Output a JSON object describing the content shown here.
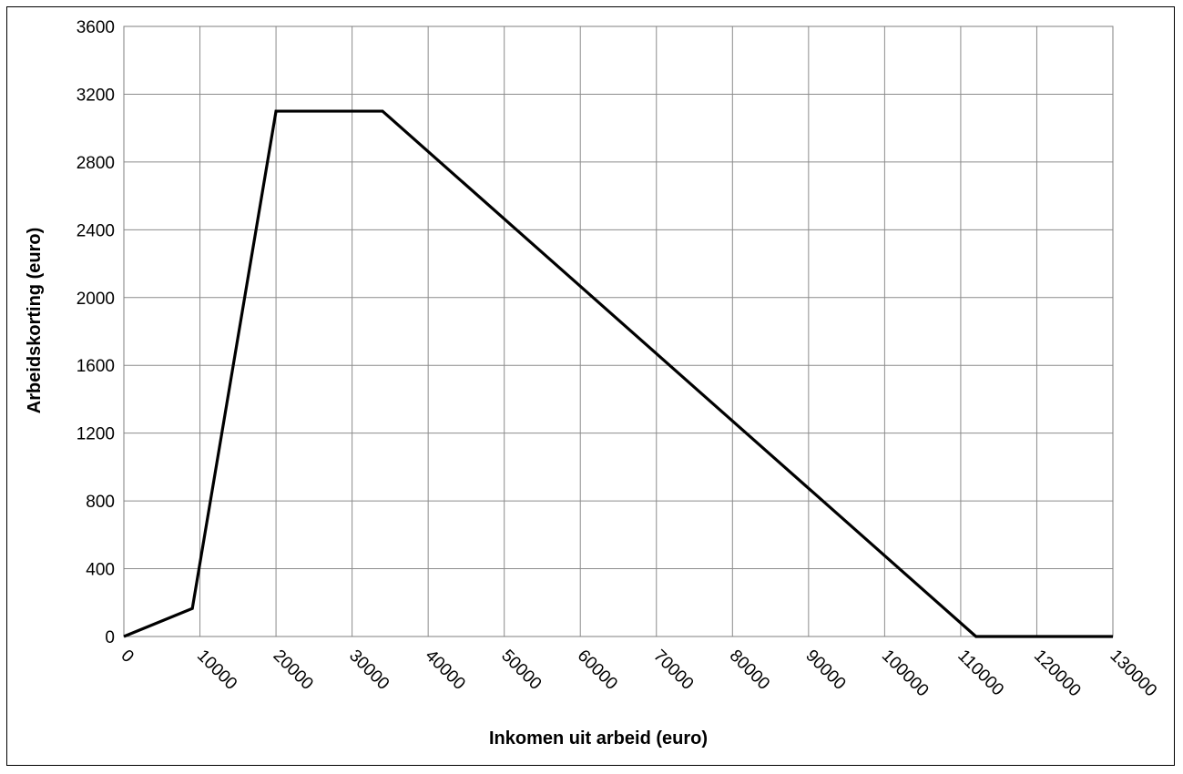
{
  "chart_data": {
    "type": "line",
    "title": "",
    "xlabel": "Inkomen uit arbeid (euro)",
    "ylabel": "Arbeidskorting (euro)",
    "xlim": [
      0,
      130000
    ],
    "ylim": [
      0,
      3600
    ],
    "xticks": [
      "0",
      "10000",
      "20000",
      "30000",
      "40000",
      "50000",
      "60000",
      "70000",
      "80000",
      "90000",
      "100000",
      "110000",
      "120000",
      "130000"
    ],
    "yticks": [
      "0",
      "400",
      "800",
      "1200",
      "1600",
      "2000",
      "2400",
      "2800",
      "3200",
      "3600"
    ],
    "grid": true,
    "legend": "none",
    "series": [
      {
        "color": "#000000",
        "x": [
          0,
          9000,
          20000,
          34000,
          112000,
          130000
        ],
        "y": [
          0,
          165,
          3100,
          3100,
          0,
          0
        ]
      }
    ]
  }
}
